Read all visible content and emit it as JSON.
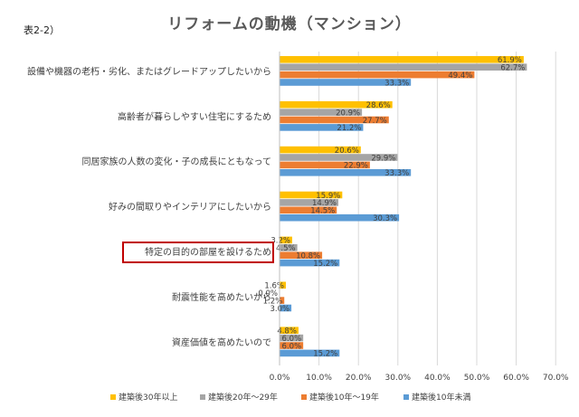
{
  "table_label": "表2-2）",
  "chart_data": {
    "type": "bar",
    "orientation": "horizontal",
    "title": "リフォームの動機（マンション）",
    "categories": [
      "設備や機器の老朽・劣化、またはグレードアップしたいから",
      "高齢者が暮らしやすい住宅にするため",
      "同居家族の人数の変化・子の成長にともなって",
      "好みの間取りやインテリアにしたいから",
      "特定の目的の部屋を設けるため",
      "耐震性能を高めたいから",
      "資産価値を高めたいので"
    ],
    "highlighted_category": "特定の目的の部屋を設けるため",
    "highlight_color": "#c00000",
    "series": [
      {
        "name": "建築後30年以上",
        "color": "#ffc000",
        "values": [
          61.9,
          28.6,
          20.6,
          15.9,
          3.2,
          1.6,
          4.8
        ]
      },
      {
        "name": "建築後20年〜29年",
        "color": "#a5a5a5",
        "values": [
          62.7,
          20.9,
          29.9,
          14.9,
          4.5,
          0.0,
          6.0
        ]
      },
      {
        "name": "建築後10年〜19年",
        "color": "#ed7d31",
        "values": [
          49.4,
          27.7,
          22.9,
          14.5,
          10.8,
          1.2,
          6.0
        ]
      },
      {
        "name": "建築後10年未満",
        "color": "#5b9bd5",
        "values": [
          33.3,
          21.2,
          33.3,
          30.3,
          15.2,
          3.0,
          15.2
        ]
      }
    ],
    "data_labels": [
      [
        "61.9%",
        "28.6%",
        "20.6%",
        "15.9%",
        "3.2%",
        "1.6%",
        "4.8%"
      ],
      [
        "62.7%",
        "20.9%",
        "29.9%",
        "14.9%",
        "4.5%",
        "0.0%",
        "6.0%"
      ],
      [
        "49.4%",
        "27.7%",
        "22.9%",
        "14.5%",
        "10.8%",
        "1.2%",
        "6.0%"
      ],
      [
        "33.3%",
        "21.2%",
        "33.3%",
        "30.3%",
        "15.2%",
        "3.0%",
        "15.2%"
      ]
    ],
    "x_ticks": [
      0,
      10,
      20,
      30,
      40,
      50,
      60,
      70
    ],
    "x_tick_labels": [
      "0.0%",
      "10.0%",
      "20.0%",
      "30.0%",
      "40.0%",
      "50.0%",
      "60.0%",
      "70.0%"
    ],
    "xlim": [
      0,
      70
    ],
    "xlabel": "",
    "ylabel": "",
    "grid": true,
    "legend_position": "bottom"
  }
}
